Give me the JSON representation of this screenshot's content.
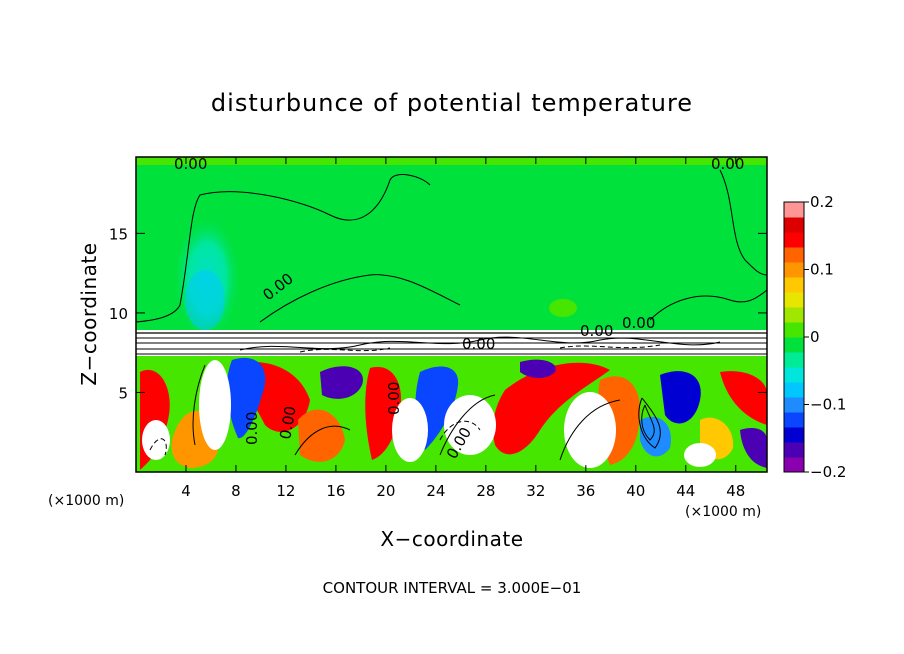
{
  "chart_data": {
    "type": "heatmap",
    "title": "disturbunce of potential temperature",
    "xlabel": "X−coordinate",
    "ylabel": "Z−coordinate",
    "x_unit_left": "(×1000 m)",
    "x_unit_right": "(×1000 m)",
    "xlim": [
      0,
      50.5
    ],
    "ylim": [
      0,
      19.8
    ],
    "xticks": [
      "4",
      "8",
      "12",
      "16",
      "20",
      "24",
      "28",
      "32",
      "36",
      "40",
      "44",
      "48"
    ],
    "xtick_values": [
      4,
      8,
      12,
      16,
      20,
      24,
      28,
      32,
      36,
      40,
      44,
      48
    ],
    "yticks": [
      "5",
      "10",
      "15"
    ],
    "ytick_values": [
      5,
      10,
      15
    ],
    "colorbar": {
      "range": [
        -0.2,
        0.2
      ],
      "ticks": [
        "0.2",
        "0.1",
        "0",
        "−0.1",
        "−0.2"
      ],
      "tick_values": [
        0.2,
        0.1,
        0,
        -0.1,
        -0.2
      ],
      "colors": [
        "#8a00b0",
        "#4b00b4",
        "#0000d2",
        "#0a46ff",
        "#1e8cff",
        "#00c8ff",
        "#00e6dc",
        "#00eb96",
        "#00e13c",
        "#46e600",
        "#a0e600",
        "#e6e600",
        "#ffc800",
        "#ff9600",
        "#ff6400",
        "#ff0000",
        "#dc0000",
        "#ff9696"
      ]
    },
    "contour_labels": [
      "0.00",
      "0.00",
      "0.00",
      "0.00",
      "0.00",
      "0.00",
      "0.00",
      "0.00",
      "0.00",
      "0.00"
    ],
    "footnote": "CONTOUR INTERVAL = 3.000E−01",
    "fields": {
      "upper_background": 0.0,
      "upper_left_cool_blob": -0.05,
      "surface_warm": 0.15,
      "surface_cool": -0.15
    }
  }
}
